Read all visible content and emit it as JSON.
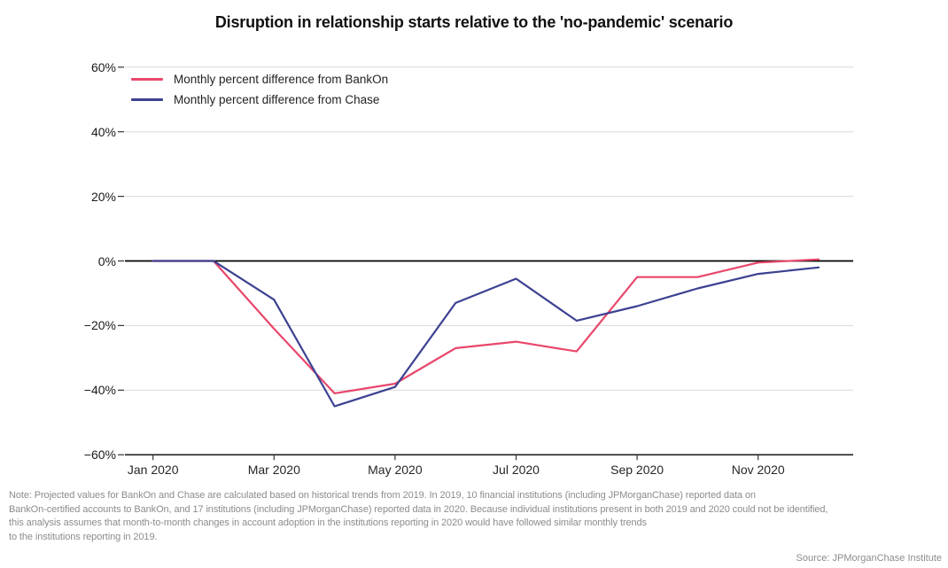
{
  "title": "Disruption in relationship starts relative to the 'no-pandemic' scenario",
  "chart_data": {
    "type": "line",
    "title": "Disruption in relationship starts relative to the 'no-pandemic' scenario",
    "x": [
      "Jan 2020",
      "Feb 2020",
      "Mar 2020",
      "Apr 2020",
      "May 2020",
      "Jun 2020",
      "Jul 2020",
      "Aug 2020",
      "Sep 2020",
      "Oct 2020",
      "Nov 2020",
      "Dec 2020"
    ],
    "series": [
      {
        "id": "bankon",
        "name": "Monthly percent difference from BankOn",
        "color": "#E8476C",
        "values": [
          0,
          0,
          -21,
          -41,
          -38,
          -27,
          -25,
          -28,
          -5,
          -5,
          -0.5,
          0.5
        ]
      },
      {
        "id": "chase",
        "name": "Monthly percent difference from Chase",
        "color": "#3C4191",
        "values": [
          0,
          0,
          -12,
          -45,
          -39,
          -13,
          -5.5,
          -18.5,
          -14,
          -8.5,
          -4,
          -2
        ]
      }
    ],
    "unit": "percent",
    "ylim": [
      -60,
      60
    ],
    "yticks": [
      60,
      40,
      20,
      0,
      -20,
      -40,
      -60
    ],
    "ytick_labels": [
      "60%",
      "40%",
      "20%",
      "0%",
      "−20%",
      "−40%",
      "−60%"
    ],
    "xtick_month_indices": [
      0,
      2,
      4,
      6,
      8,
      10
    ],
    "xtick_labels": [
      "Jan 2020",
      "Mar 2020",
      "May 2020",
      "Jul 2020",
      "Sep 2020",
      "Nov 2020"
    ],
    "grid": "horizontal",
    "legend_position": "top-left",
    "zero_line": true
  },
  "note": {
    "lines": [
      "Note: Projected values for BankOn and Chase are calculated based on historical trends from 2019. In 2019, 10 financial institutions (including JPMorganChase) reported data on",
      "BankOn-certified accounts to BankOn, and 17 institutions (including JPMorganChase) reported data in 2020. Because individual institutions present in both 2019 and 2020 could not be identified,",
      "this analysis assumes that month-to-month changes in account adoption in the institutions reporting in 2020 would have followed similar monthly trends",
      "to the institutions reporting in 2019."
    ]
  },
  "source": "Source: JPMorganChase Institute",
  "colors": {
    "background": "#ffffff",
    "grid": "#d9d9d9",
    "axis": "#000000",
    "tick": "#333333",
    "bankon_line": "#E8476C",
    "chase_line": "#3C4191",
    "note_text": "#8c8c8c"
  }
}
